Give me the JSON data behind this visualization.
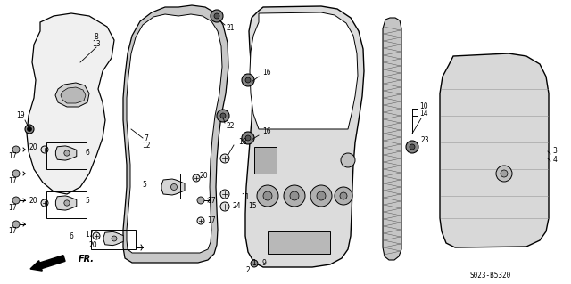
{
  "bg_color": "#ffffff",
  "diagram_code": "S023-B5320",
  "figsize": [
    6.4,
    3.19
  ],
  "dpi": 100
}
